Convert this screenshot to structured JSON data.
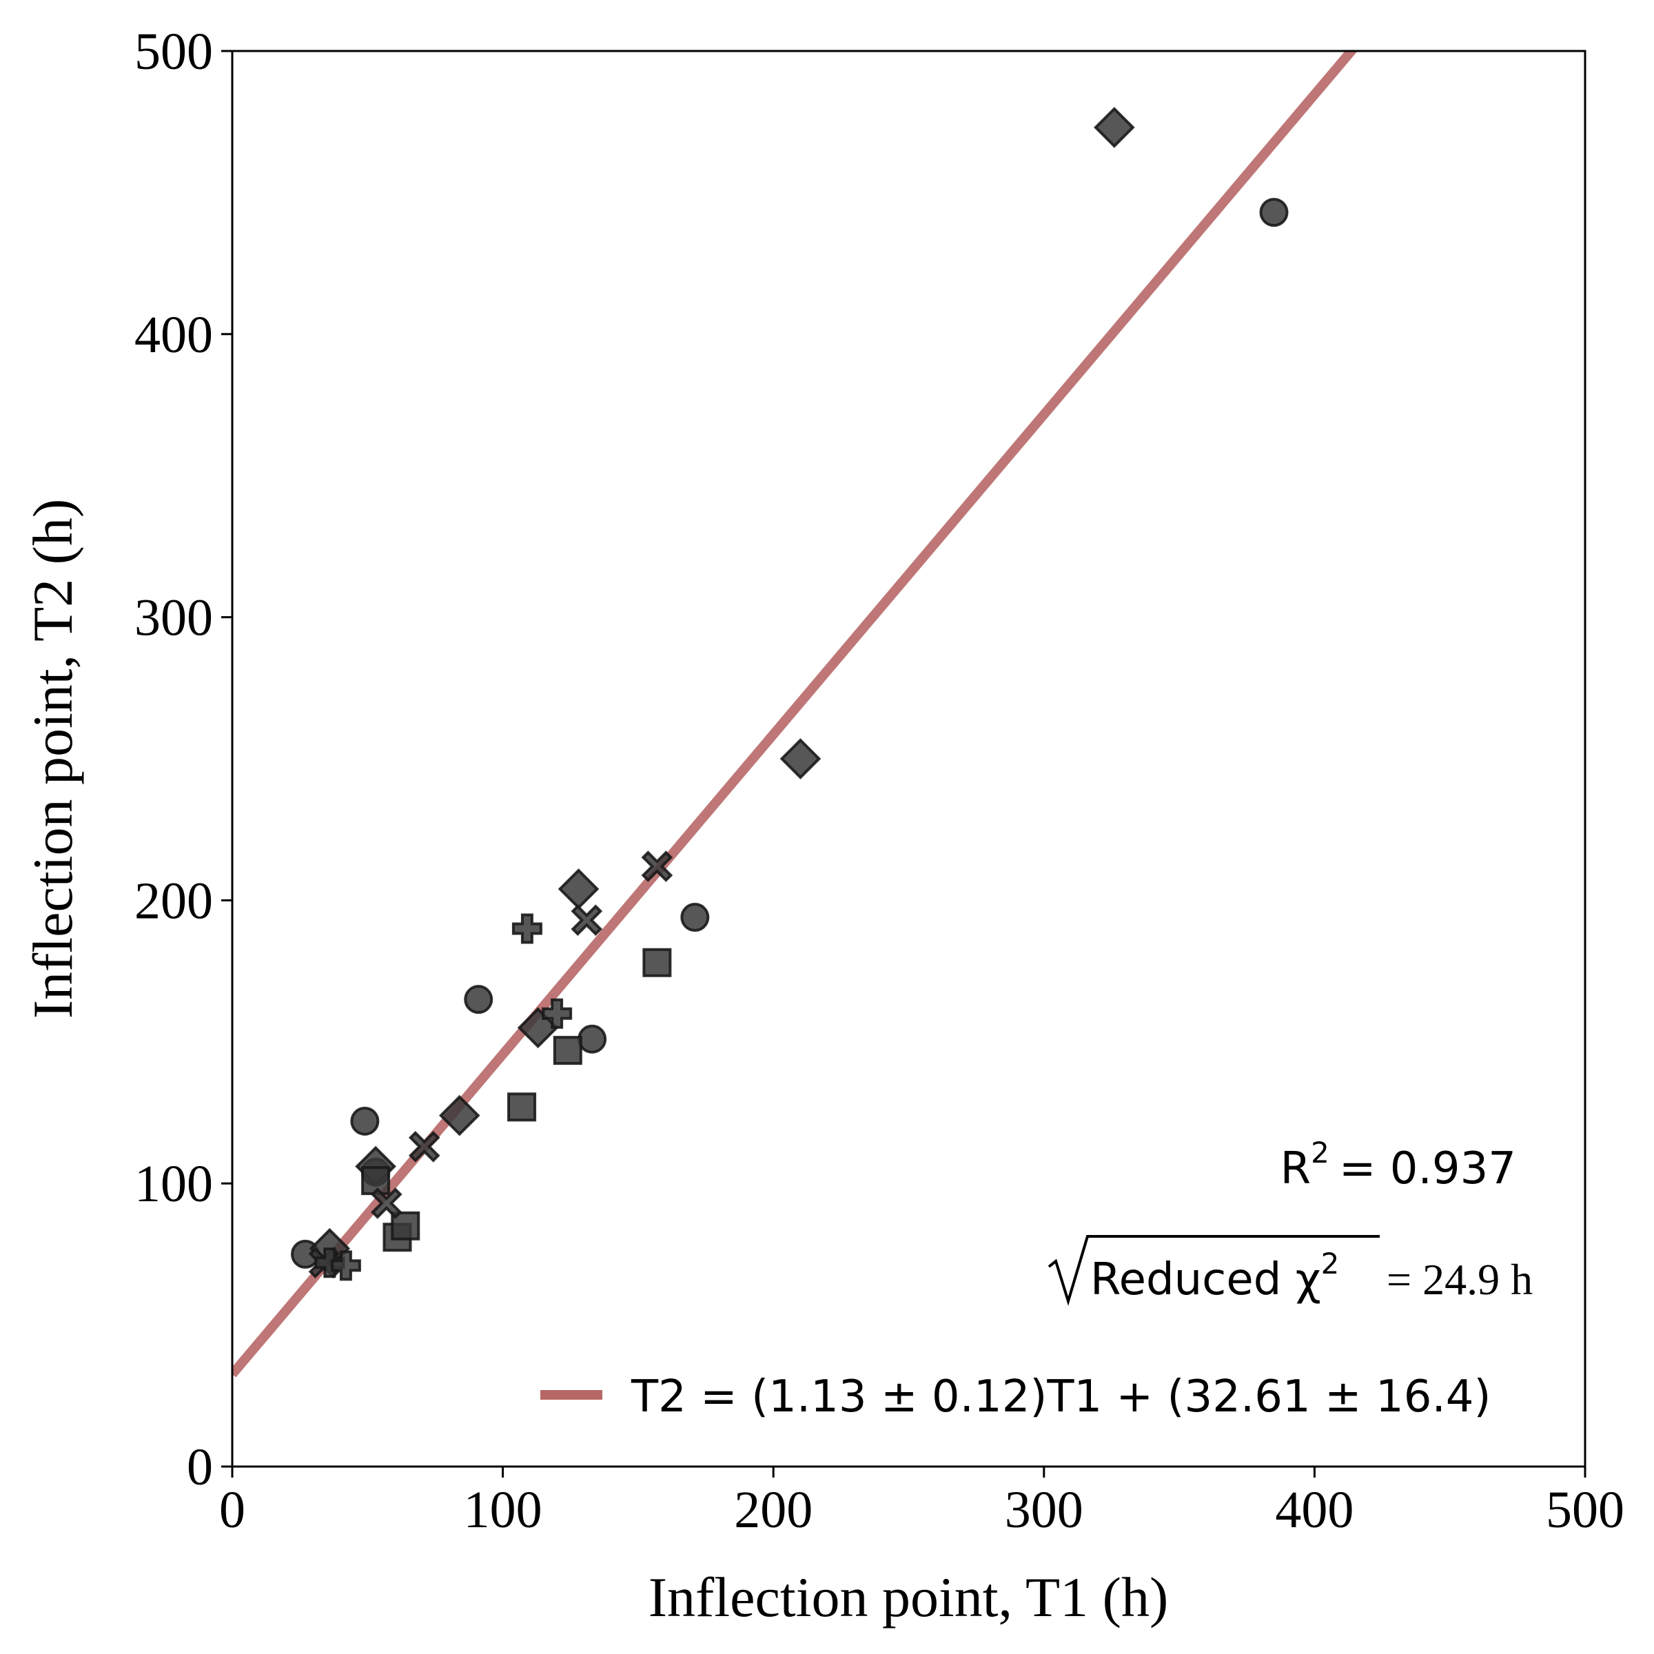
{
  "chart_data": {
    "type": "scatter",
    "xlabel": "Inflection point, T1 (h)",
    "ylabel": "Inflection point, T2 (h)",
    "xlim": [
      0,
      500
    ],
    "ylim": [
      0,
      500
    ],
    "x_ticks": [
      0,
      100,
      200,
      300,
      400,
      500
    ],
    "y_ticks": [
      0,
      100,
      200,
      300,
      400,
      500
    ],
    "grid": false,
    "legend_position": "bottom-right",
    "series": [
      {
        "marker": "circle",
        "points": [
          {
            "x": 27,
            "y": 75
          },
          {
            "x": 49,
            "y": 122
          },
          {
            "x": 53,
            "y": 104
          },
          {
            "x": 91,
            "y": 165
          },
          {
            "x": 133,
            "y": 151
          },
          {
            "x": 171,
            "y": 194
          },
          {
            "x": 385,
            "y": 443
          }
        ]
      },
      {
        "marker": "diamond",
        "points": [
          {
            "x": 36,
            "y": 77
          },
          {
            "x": 53,
            "y": 106
          },
          {
            "x": 84,
            "y": 124
          },
          {
            "x": 113,
            "y": 155
          },
          {
            "x": 128,
            "y": 204
          },
          {
            "x": 210,
            "y": 250
          },
          {
            "x": 326,
            "y": 473
          }
        ]
      },
      {
        "marker": "square",
        "points": [
          {
            "x": 53,
            "y": 101
          },
          {
            "x": 61,
            "y": 81
          },
          {
            "x": 64,
            "y": 85
          },
          {
            "x": 107,
            "y": 127
          },
          {
            "x": 124,
            "y": 147
          },
          {
            "x": 157,
            "y": 178
          }
        ]
      },
      {
        "marker": "x",
        "points": [
          {
            "x": 34,
            "y": 72
          },
          {
            "x": 57,
            "y": 93
          },
          {
            "x": 71,
            "y": 113
          },
          {
            "x": 131,
            "y": 193
          },
          {
            "x": 157,
            "y": 212
          }
        ]
      },
      {
        "marker": "plus",
        "points": [
          {
            "x": 36,
            "y": 72
          },
          {
            "x": 42,
            "y": 71
          },
          {
            "x": 109,
            "y": 190
          },
          {
            "x": 120,
            "y": 160
          }
        ]
      }
    ],
    "fit_line": {
      "slope": 1.13,
      "intercept": 32.61,
      "color": "#b86767",
      "label": "T2 = (1.13 ± 0.12)T1 + (32.61 ± 16.4)"
    },
    "marker_color": "#3a3a3a",
    "annotations": {
      "r2_label": "R",
      "r2_exp": "2",
      "r2_value": "= 0.937",
      "chi_label": "Reduced χ",
      "chi_exp": "2",
      "chi_value": "= 24.9 h"
    }
  }
}
